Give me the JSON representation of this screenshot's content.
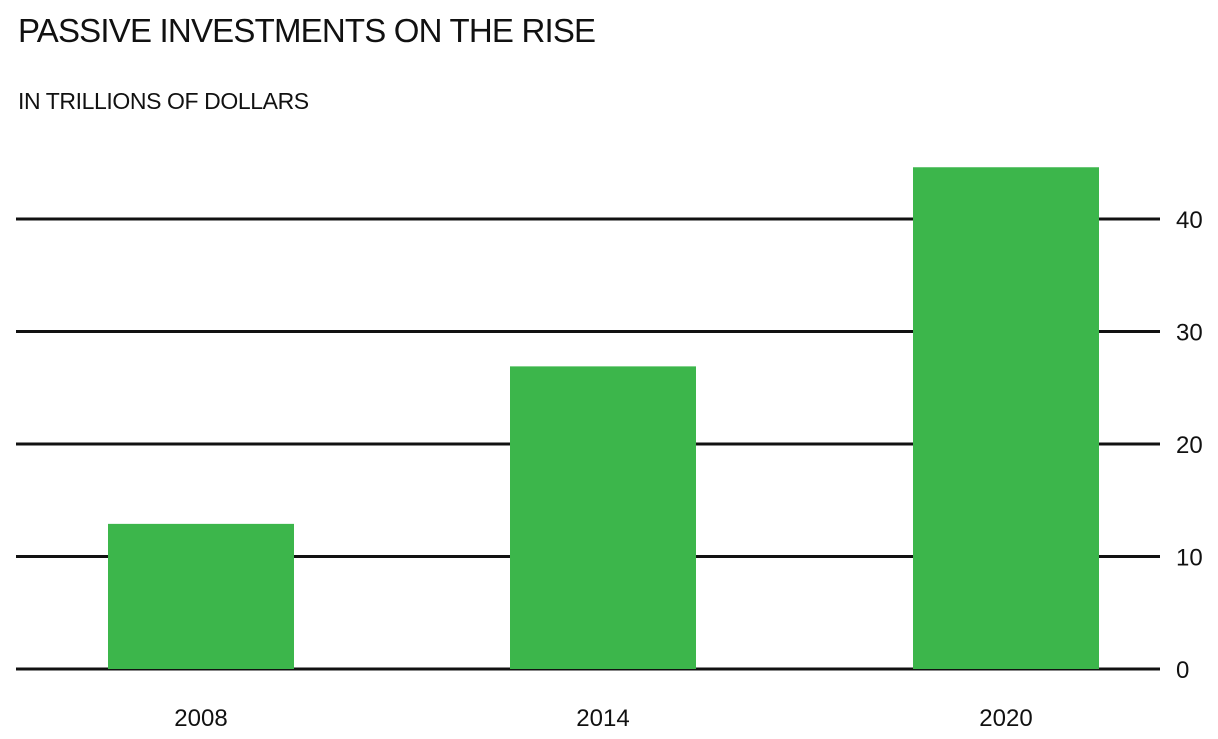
{
  "chart_data": {
    "type": "bar",
    "title": "PASSIVE INVESTMENTS ON THE RISE",
    "subtitle": "IN TRILLIONS OF DOLLARS",
    "categories": [
      "2008",
      "2014",
      "2020"
    ],
    "values": [
      12.9,
      26.9,
      44.6
    ],
    "yticks": [
      0,
      10,
      20,
      30,
      40
    ],
    "ylim": [
      0,
      46
    ],
    "xlabel": "",
    "ylabel": "",
    "grid": true,
    "y_axis_side": "right",
    "bar_color": "#3cb64b",
    "grid_color": "#111111"
  }
}
